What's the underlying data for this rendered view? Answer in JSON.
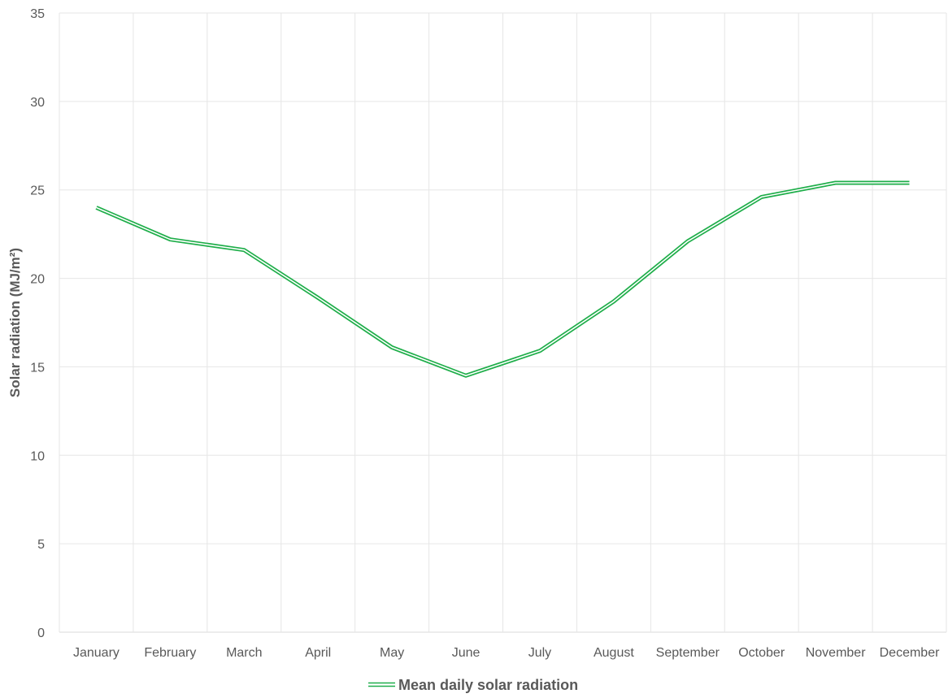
{
  "chart_data": {
    "type": "line",
    "title": "",
    "xlabel": "",
    "ylabel": "Solar radiation (MJ/m²)",
    "categories": [
      "January",
      "February",
      "March",
      "April",
      "May",
      "June",
      "July",
      "August",
      "September",
      "October",
      "November",
      "December"
    ],
    "series": [
      {
        "name": "Mean daily solar radiation",
        "color": "#1fae4a",
        "values": [
          24.0,
          22.2,
          21.6,
          18.9,
          16.1,
          14.5,
          15.9,
          18.7,
          22.1,
          24.6,
          25.4,
          25.4
        ]
      }
    ],
    "ylim": [
      0,
      35
    ],
    "yticks": [
      0,
      5,
      10,
      15,
      20,
      25,
      30,
      35
    ],
    "grid": "both",
    "legend_position": "bottom"
  }
}
